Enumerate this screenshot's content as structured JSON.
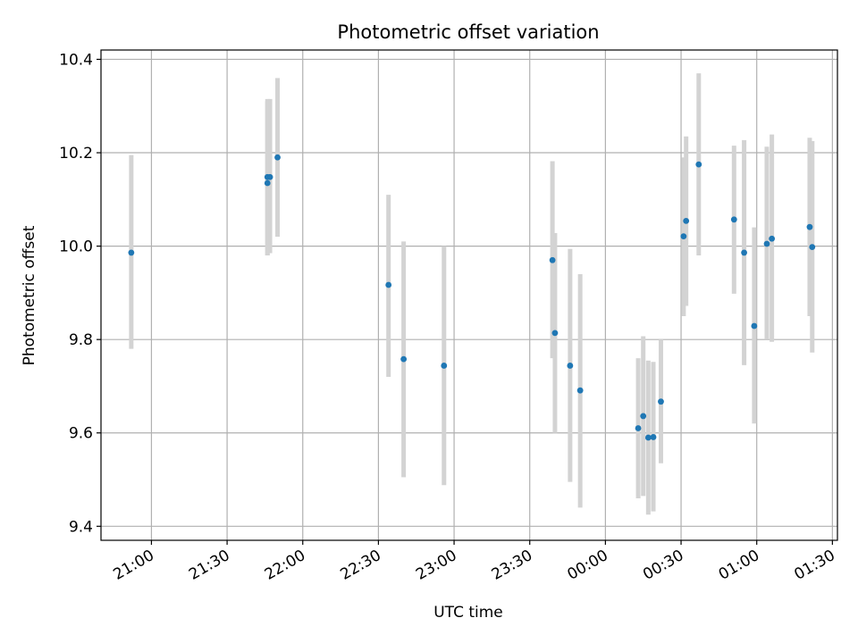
{
  "chart_data": {
    "type": "scatter",
    "title": "Photometric offset variation",
    "xlabel": "UTC time",
    "ylabel": "Photometric offset",
    "xlim": [
      "20:40",
      "01:32"
    ],
    "ylim": [
      9.37,
      10.42
    ],
    "x_ticks": [
      "21:00",
      "21:30",
      "22:00",
      "22:30",
      "23:00",
      "23:30",
      "00:00",
      "00:30",
      "01:00",
      "01:30"
    ],
    "y_ticks": [
      "9.4",
      "9.6",
      "9.8",
      "10.0",
      "10.2",
      "10.4"
    ],
    "grid": true,
    "legend": "none",
    "colors": {
      "point": "#1f77b4",
      "errorbar": "#d3d3d3",
      "grid": "#b0b0b0"
    },
    "series": [
      {
        "points": [
          {
            "x": "20:52",
            "y": 9.986,
            "ymin": 9.78,
            "ymax": 10.195
          },
          {
            "x": "21:46",
            "y": 10.135,
            "ymin": 9.98,
            "ymax": 10.31
          },
          {
            "x": "21:46",
            "y": 10.148,
            "ymin": 9.98,
            "ymax": 10.315
          },
          {
            "x": "21:47",
            "y": 10.148,
            "ymin": 9.985,
            "ymax": 10.315
          },
          {
            "x": "21:50",
            "y": 10.19,
            "ymin": 10.02,
            "ymax": 10.36
          },
          {
            "x": "22:34",
            "y": 9.917,
            "ymin": 9.72,
            "ymax": 10.11
          },
          {
            "x": "22:40",
            "y": 9.758,
            "ymin": 9.505,
            "ymax": 10.01
          },
          {
            "x": "22:56",
            "y": 9.744,
            "ymin": 9.488,
            "ymax": 10.0
          },
          {
            "x": "23:39",
            "y": 9.97,
            "ymin": 9.76,
            "ymax": 10.182
          },
          {
            "x": "23:40",
            "y": 9.814,
            "ymin": 9.6,
            "ymax": 10.028
          },
          {
            "x": "23:46",
            "y": 9.744,
            "ymin": 9.495,
            "ymax": 9.994
          },
          {
            "x": "23:50",
            "y": 9.691,
            "ymin": 9.44,
            "ymax": 9.94
          },
          {
            "x": "00:13",
            "y": 9.61,
            "ymin": 9.46,
            "ymax": 9.76
          },
          {
            "x": "00:15",
            "y": 9.636,
            "ymin": 9.465,
            "ymax": 9.807
          },
          {
            "x": "00:17",
            "y": 9.59,
            "ymin": 9.425,
            "ymax": 9.755
          },
          {
            "x": "00:19",
            "y": 9.591,
            "ymin": 9.432,
            "ymax": 9.752
          },
          {
            "x": "00:22",
            "y": 9.667,
            "ymin": 9.535,
            "ymax": 9.8
          },
          {
            "x": "00:31",
            "y": 10.021,
            "ymin": 9.85,
            "ymax": 10.19
          },
          {
            "x": "00:32",
            "y": 10.054,
            "ymin": 9.872,
            "ymax": 10.235
          },
          {
            "x": "00:37",
            "y": 10.175,
            "ymin": 9.98,
            "ymax": 10.37
          },
          {
            "x": "00:51",
            "y": 10.057,
            "ymin": 9.898,
            "ymax": 10.215
          },
          {
            "x": "00:55",
            "y": 9.986,
            "ymin": 9.745,
            "ymax": 10.227
          },
          {
            "x": "00:59",
            "y": 9.829,
            "ymin": 9.62,
            "ymax": 10.04
          },
          {
            "x": "01:04",
            "y": 10.005,
            "ymin": 9.8,
            "ymax": 10.213
          },
          {
            "x": "01:06",
            "y": 10.016,
            "ymin": 9.795,
            "ymax": 10.239
          },
          {
            "x": "01:21",
            "y": 10.041,
            "ymin": 9.85,
            "ymax": 10.232
          },
          {
            "x": "01:22",
            "y": 9.998,
            "ymin": 9.772,
            "ymax": 10.225
          }
        ]
      }
    ]
  }
}
